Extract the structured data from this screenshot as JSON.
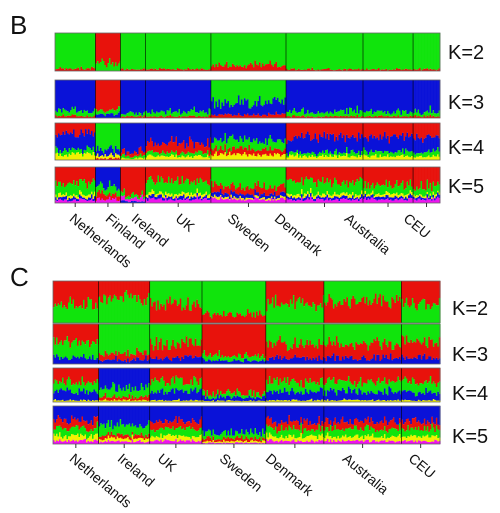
{
  "colors": {
    "red": "#e8120c",
    "green": "#10e40c",
    "blue": "#0a12d8",
    "yellow": "#f2f200",
    "magenta": "#ee12ee"
  },
  "chart_data": [
    {
      "type": "stacked-bar",
      "panel": "B",
      "populations": [
        "Netherlands",
        "Finland",
        "Ireland",
        "UK",
        "Sweden",
        "Denmark",
        "Australia",
        "CEU"
      ],
      "rows": [
        {
          "k_label": "K=2",
          "ancestry": {
            "Netherlands": {
              "green": 0.94,
              "red": 0.06
            },
            "Finland": {
              "red": 0.82,
              "green": 0.18
            },
            "Ireland": {
              "green": 0.96,
              "red": 0.04
            },
            "UK": {
              "green": 0.96,
              "red": 0.04
            },
            "Sweden": {
              "green": 0.86,
              "red": 0.14
            },
            "Denmark": {
              "green": 0.96,
              "red": 0.04
            },
            "Australia": {
              "green": 0.96,
              "red": 0.04
            },
            "CEU": {
              "green": 0.96,
              "red": 0.04
            }
          }
        },
        {
          "k_label": "K=3",
          "ancestry": {
            "Netherlands": {
              "blue": 0.82,
              "green": 0.13,
              "red": 0.05
            },
            "Finland": {
              "red": 0.78,
              "green": 0.12,
              "blue": 0.1
            },
            "Ireland": {
              "blue": 0.88,
              "green": 0.08,
              "red": 0.04
            },
            "UK": {
              "blue": 0.84,
              "green": 0.12,
              "red": 0.04
            },
            "Sweden": {
              "green": 0.62,
              "blue": 0.3,
              "red": 0.08
            },
            "Denmark": {
              "blue": 0.84,
              "green": 0.12,
              "red": 0.04
            },
            "Australia": {
              "blue": 0.84,
              "green": 0.12,
              "red": 0.04
            },
            "CEU": {
              "blue": 0.84,
              "green": 0.12,
              "red": 0.04
            }
          }
        },
        {
          "k_label": "K=4",
          "ancestry": {
            "Netherlands": {
              "red": 0.3,
              "blue": 0.42,
              "green": 0.12,
              "yellow": 0.16
            },
            "Finland": {
              "green": 0.7,
              "blue": 0.18,
              "yellow": 0.08,
              "red": 0.04
            },
            "Ireland": {
              "blue": 0.8,
              "red": 0.1,
              "green": 0.06,
              "yellow": 0.04
            },
            "UK": {
              "blue": 0.55,
              "red": 0.25,
              "green": 0.1,
              "yellow": 0.1
            },
            "Sweden": {
              "blue": 0.45,
              "green": 0.25,
              "red": 0.15,
              "yellow": 0.15
            },
            "Denmark": {
              "red": 0.4,
              "blue": 0.4,
              "green": 0.1,
              "yellow": 0.1
            },
            "Australia": {
              "red": 0.38,
              "blue": 0.4,
              "green": 0.12,
              "yellow": 0.1
            },
            "CEU": {
              "red": 0.38,
              "blue": 0.4,
              "green": 0.12,
              "yellow": 0.1
            }
          }
        },
        {
          "k_label": "K=5",
          "ancestry": {
            "Netherlands": {
              "red": 0.45,
              "green": 0.32,
              "yellow": 0.08,
              "blue": 0.07,
              "magenta": 0.08
            },
            "Finland": {
              "blue": 0.55,
              "green": 0.2,
              "red": 0.15,
              "magenta": 0.1
            },
            "Ireland": {
              "red": 0.75,
              "green": 0.1,
              "magenta": 0.1,
              "blue": 0.05
            },
            "UK": {
              "red": 0.4,
              "green": 0.35,
              "yellow": 0.08,
              "blue": 0.07,
              "magenta": 0.1
            },
            "Sweden": {
              "green": 0.55,
              "red": 0.2,
              "blue": 0.1,
              "yellow": 0.05,
              "magenta": 0.1
            },
            "Denmark": {
              "red": 0.4,
              "green": 0.35,
              "yellow": 0.08,
              "blue": 0.07,
              "magenta": 0.1
            },
            "Australia": {
              "red": 0.5,
              "green": 0.25,
              "yellow": 0.08,
              "blue": 0.07,
              "magenta": 0.1
            },
            "CEU": {
              "red": 0.55,
              "green": 0.22,
              "yellow": 0.06,
              "blue": 0.07,
              "magenta": 0.1
            }
          }
        }
      ]
    },
    {
      "type": "stacked-bar",
      "panel": "C",
      "populations": [
        "Netherlands",
        "Ireland",
        "UK",
        "Sweden",
        "Denmark",
        "Australia",
        "CEU"
      ],
      "rows": [
        {
          "k_label": "K=2",
          "ancestry": {
            "Netherlands": {
              "red": 0.55,
              "green": 0.45
            },
            "Ireland": {
              "red": 0.4,
              "green": 0.6
            },
            "UK": {
              "green": 0.55,
              "red": 0.45
            },
            "Sweden": {
              "green": 0.8,
              "red": 0.2
            },
            "Denmark": {
              "red": 0.55,
              "green": 0.45
            },
            "Australia": {
              "green": 0.5,
              "red": 0.5
            },
            "CEU": {
              "red": 0.55,
              "green": 0.45
            }
          }
        },
        {
          "k_label": "K=3",
          "ancestry": {
            "Netherlands": {
              "red": 0.45,
              "green": 0.4,
              "blue": 0.15
            },
            "Ireland": {
              "green": 0.75,
              "red": 0.15,
              "blue": 0.1
            },
            "UK": {
              "green": 0.5,
              "red": 0.35,
              "blue": 0.15
            },
            "Sweden": {
              "red": 0.8,
              "green": 0.12,
              "blue": 0.08
            },
            "Denmark": {
              "green": 0.5,
              "red": 0.35,
              "blue": 0.15
            },
            "Australia": {
              "green": 0.5,
              "red": 0.35,
              "blue": 0.15
            },
            "CEU": {
              "green": 0.45,
              "red": 0.4,
              "blue": 0.15
            }
          }
        },
        {
          "k_label": "K=4",
          "ancestry": {
            "Netherlands": {
              "red": 0.4,
              "green": 0.3,
              "blue": 0.25,
              "yellow": 0.05
            },
            "Ireland": {
              "blue": 0.6,
              "green": 0.25,
              "red": 0.1,
              "yellow": 0.05
            },
            "UK": {
              "red": 0.4,
              "green": 0.3,
              "blue": 0.25,
              "yellow": 0.05
            },
            "Sweden": {
              "red": 0.75,
              "green": 0.12,
              "blue": 0.1,
              "yellow": 0.03
            },
            "Denmark": {
              "red": 0.4,
              "green": 0.3,
              "blue": 0.25,
              "yellow": 0.05
            },
            "Australia": {
              "red": 0.4,
              "green": 0.3,
              "blue": 0.25,
              "yellow": 0.05
            },
            "CEU": {
              "red": 0.4,
              "green": 0.3,
              "blue": 0.25,
              "yellow": 0.05
            }
          }
        },
        {
          "k_label": "K=5",
          "ancestry": {
            "Netherlands": {
              "blue": 0.4,
              "red": 0.2,
              "green": 0.2,
              "yellow": 0.12,
              "magenta": 0.08
            },
            "Ireland": {
              "blue": 0.5,
              "green": 0.25,
              "red": 0.1,
              "yellow": 0.08,
              "magenta": 0.07
            },
            "UK": {
              "blue": 0.4,
              "red": 0.2,
              "green": 0.2,
              "yellow": 0.12,
              "magenta": 0.08
            },
            "Sweden": {
              "blue": 0.7,
              "green": 0.15,
              "red": 0.08,
              "yellow": 0.04,
              "magenta": 0.03
            },
            "Denmark": {
              "blue": 0.4,
              "red": 0.2,
              "green": 0.2,
              "yellow": 0.12,
              "magenta": 0.08
            },
            "Australia": {
              "blue": 0.4,
              "red": 0.2,
              "green": 0.2,
              "yellow": 0.12,
              "magenta": 0.08
            },
            "CEU": {
              "blue": 0.4,
              "red": 0.2,
              "green": 0.2,
              "yellow": 0.12,
              "magenta": 0.08
            }
          }
        }
      ]
    }
  ]
}
